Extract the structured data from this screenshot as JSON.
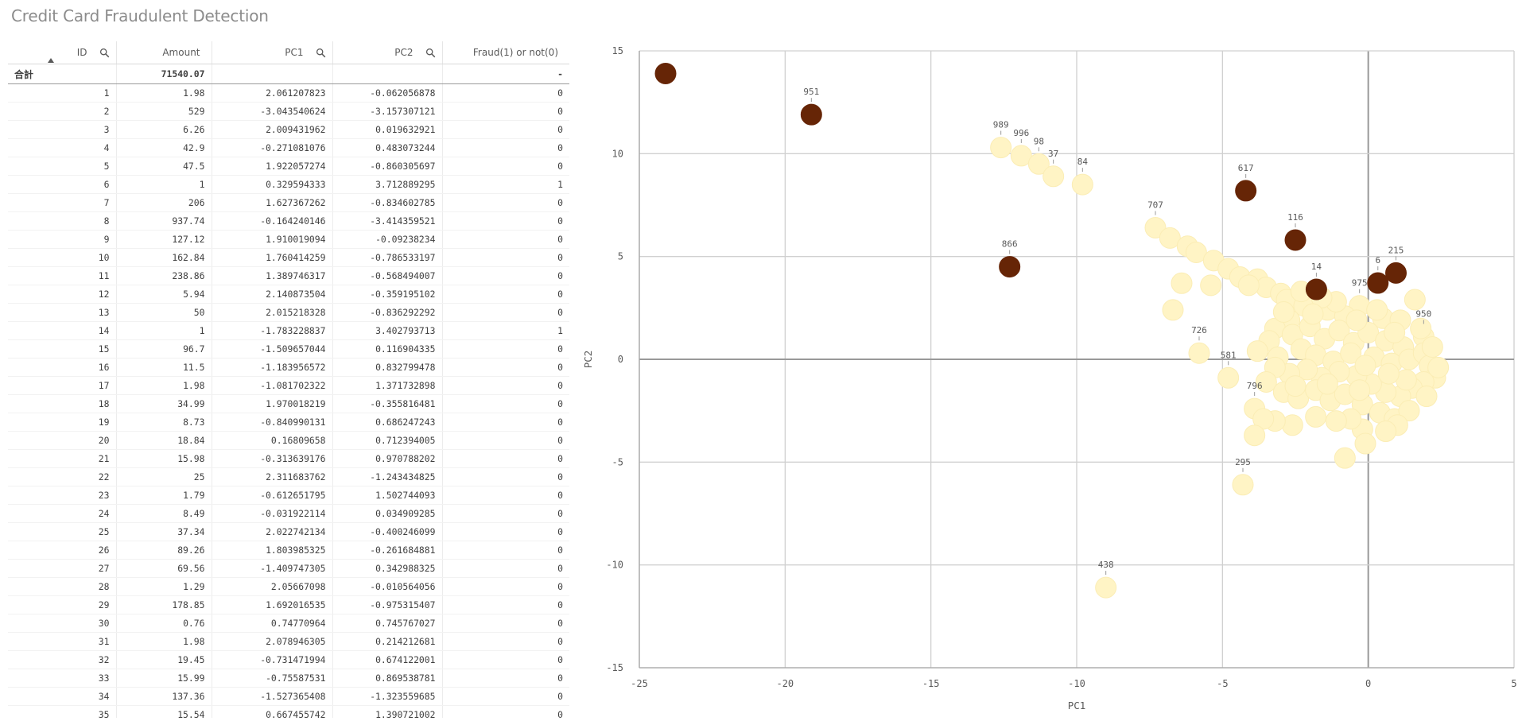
{
  "page": {
    "title": "Credit Card Fraudulent Detection"
  },
  "table": {
    "headers": [
      "ID",
      "Amount",
      "PC1",
      "PC2",
      "Fraud(1) or not(0)"
    ],
    "total_label": "合計",
    "total_amount": "71540.07",
    "total_pc1": "",
    "total_pc2": "",
    "total_fraud": "-",
    "rows": [
      [
        "1",
        "1.98",
        "2.061207823",
        "-0.062056878",
        "0"
      ],
      [
        "2",
        "529",
        "-3.043540624",
        "-3.157307121",
        "0"
      ],
      [
        "3",
        "6.26",
        "2.009431962",
        "0.019632921",
        "0"
      ],
      [
        "4",
        "42.9",
        "-0.271081076",
        "0.483073244",
        "0"
      ],
      [
        "5",
        "47.5",
        "1.922057274",
        "-0.860305697",
        "0"
      ],
      [
        "6",
        "1",
        "0.329594333",
        "3.712889295",
        "1"
      ],
      [
        "7",
        "206",
        "1.627367262",
        "-0.834602785",
        "0"
      ],
      [
        "8",
        "937.74",
        "-0.164240146",
        "-3.414359521",
        "0"
      ],
      [
        "9",
        "127.12",
        "1.910019094",
        "-0.09238234",
        "0"
      ],
      [
        "10",
        "162.84",
        "1.760414259",
        "-0.786533197",
        "0"
      ],
      [
        "11",
        "238.86",
        "1.389746317",
        "-0.568494007",
        "0"
      ],
      [
        "12",
        "5.94",
        "2.140873504",
        "-0.359195102",
        "0"
      ],
      [
        "13",
        "50",
        "2.015218328",
        "-0.836292292",
        "0"
      ],
      [
        "14",
        "1",
        "-1.783228837",
        "3.402793713",
        "1"
      ],
      [
        "15",
        "96.7",
        "-1.509657044",
        "0.116904335",
        "0"
      ],
      [
        "16",
        "11.5",
        "-1.183956572",
        "0.832799478",
        "0"
      ],
      [
        "17",
        "1.98",
        "-1.081702322",
        "1.371732898",
        "0"
      ],
      [
        "18",
        "34.99",
        "1.970018219",
        "-0.355816481",
        "0"
      ],
      [
        "19",
        "8.73",
        "-0.840990131",
        "0.686247243",
        "0"
      ],
      [
        "20",
        "18.84",
        "0.16809658",
        "0.712394005",
        "0"
      ],
      [
        "21",
        "15.98",
        "-0.313639176",
        "0.970788202",
        "0"
      ],
      [
        "22",
        "25",
        "2.311683762",
        "-1.243434825",
        "0"
      ],
      [
        "23",
        "1.79",
        "-0.612651795",
        "1.502744093",
        "0"
      ],
      [
        "24",
        "8.49",
        "-0.031922114",
        "0.034909285",
        "0"
      ],
      [
        "25",
        "37.34",
        "2.022742134",
        "-0.400246099",
        "0"
      ],
      [
        "26",
        "89.26",
        "1.803985325",
        "-0.261684881",
        "0"
      ],
      [
        "27",
        "69.56",
        "-1.409747305",
        "0.342988325",
        "0"
      ],
      [
        "28",
        "1.29",
        "2.05667098",
        "-0.010564056",
        "0"
      ],
      [
        "29",
        "178.85",
        "1.692016535",
        "-0.975315407",
        "0"
      ],
      [
        "30",
        "0.76",
        "0.74770964",
        "0.745767027",
        "0"
      ],
      [
        "31",
        "1.98",
        "2.078946305",
        "0.214212681",
        "0"
      ],
      [
        "32",
        "19.45",
        "-0.731471994",
        "0.674122001",
        "0"
      ],
      [
        "33",
        "15.99",
        "-0.75587531",
        "0.869538781",
        "0"
      ],
      [
        "34",
        "137.36",
        "-1.527365408",
        "-1.323559685",
        "0"
      ],
      [
        "35",
        "15.54",
        "0.667455742",
        "1.390721002",
        "0"
      ]
    ]
  },
  "colors": {
    "fraud": "#662506",
    "normal": "#fff4c5",
    "grid": "#d0d0d0",
    "axis": "#999999"
  },
  "icons": {
    "search": "search-icon",
    "sort": "sort-ascending-icon"
  },
  "chart_data": {
    "type": "scatter",
    "xlabel": "PC1",
    "ylabel": "PC2",
    "xlim": [
      -25,
      5
    ],
    "ylim": [
      -15,
      15
    ],
    "xticks": [
      -25,
      -20,
      -15,
      -10,
      -5,
      0,
      5
    ],
    "yticks": [
      -15,
      -10,
      -5,
      0,
      5,
      10,
      15
    ],
    "grid": true,
    "points": [
      {
        "label": "",
        "x": -24.1,
        "y": 13.9,
        "fraud": 1
      },
      {
        "label": "951",
        "x": -19.1,
        "y": 11.9,
        "fraud": 1
      },
      {
        "label": "866",
        "x": -12.3,
        "y": 4.5,
        "fraud": 1
      },
      {
        "label": "617",
        "x": -4.2,
        "y": 8.2,
        "fraud": 1
      },
      {
        "label": "116",
        "x": -2.5,
        "y": 5.8,
        "fraud": 1
      },
      {
        "label": "14",
        "x": -1.78,
        "y": 3.4,
        "fraud": 1
      },
      {
        "label": "6",
        "x": 0.33,
        "y": 3.71,
        "fraud": 1
      },
      {
        "label": "215",
        "x": 0.95,
        "y": 4.2,
        "fraud": 1
      },
      {
        "label": "989",
        "x": -12.6,
        "y": 10.3,
        "fraud": 0
      },
      {
        "label": "996",
        "x": -11.9,
        "y": 9.9,
        "fraud": 0
      },
      {
        "label": "98",
        "x": -11.3,
        "y": 9.5,
        "fraud": 0
      },
      {
        "label": "37",
        "x": -10.8,
        "y": 8.9,
        "fraud": 0
      },
      {
        "label": "84",
        "x": -9.8,
        "y": 8.5,
        "fraud": 0
      },
      {
        "label": "707",
        "x": -7.3,
        "y": 6.4,
        "fraud": 0
      },
      {
        "label": "726",
        "x": -5.8,
        "y": 0.3,
        "fraud": 0
      },
      {
        "label": "581",
        "x": -4.8,
        "y": -0.9,
        "fraud": 0
      },
      {
        "label": "796",
        "x": -3.9,
        "y": -2.4,
        "fraud": 0
      },
      {
        "label": "295",
        "x": -4.3,
        "y": -6.1,
        "fraud": 0
      },
      {
        "label": "438",
        "x": -9.0,
        "y": -11.1,
        "fraud": 0
      },
      {
        "label": "975",
        "x": -0.3,
        "y": 2.6,
        "fraud": 0
      },
      {
        "label": "950",
        "x": 1.9,
        "y": 1.1,
        "fraud": 0
      },
      {
        "label": "",
        "x": -6.8,
        "y": 5.9,
        "fraud": 0
      },
      {
        "label": "",
        "x": -6.2,
        "y": 5.5,
        "fraud": 0
      },
      {
        "label": "",
        "x": -5.9,
        "y": 5.2,
        "fraud": 0
      },
      {
        "label": "",
        "x": -5.3,
        "y": 4.8,
        "fraud": 0
      },
      {
        "label": "",
        "x": -4.8,
        "y": 4.4,
        "fraud": 0
      },
      {
        "label": "",
        "x": -4.4,
        "y": 4.0,
        "fraud": 0
      },
      {
        "label": "",
        "x": -3.8,
        "y": 3.9,
        "fraud": 0
      },
      {
        "label": "",
        "x": -3.5,
        "y": 3.5,
        "fraud": 0
      },
      {
        "label": "",
        "x": -3.0,
        "y": 3.2,
        "fraud": 0
      },
      {
        "label": "",
        "x": -6.4,
        "y": 3.7,
        "fraud": 0
      },
      {
        "label": "",
        "x": -5.4,
        "y": 3.6,
        "fraud": 0
      },
      {
        "label": "",
        "x": -6.7,
        "y": 2.4,
        "fraud": 0
      },
      {
        "label": "",
        "x": -2.8,
        "y": 2.9,
        "fraud": 0
      },
      {
        "label": "",
        "x": -2.2,
        "y": 2.6,
        "fraud": 0
      },
      {
        "label": "",
        "x": -1.4,
        "y": 2.4,
        "fraud": 0
      },
      {
        "label": "",
        "x": -0.8,
        "y": 2.1,
        "fraud": 0
      },
      {
        "label": "",
        "x": 0.5,
        "y": 2.0,
        "fraud": 0
      },
      {
        "label": "",
        "x": 1.1,
        "y": 1.9,
        "fraud": 0
      },
      {
        "label": "",
        "x": 1.6,
        "y": 2.9,
        "fraud": 0
      },
      {
        "label": "",
        "x": -2.7,
        "y": 1.9,
        "fraud": 0
      },
      {
        "label": "",
        "x": -3.2,
        "y": 1.5,
        "fraud": 0
      },
      {
        "label": "",
        "x": -3.4,
        "y": 0.9,
        "fraud": 0
      },
      {
        "label": "",
        "x": -3.8,
        "y": 0.4,
        "fraud": 0
      },
      {
        "label": "",
        "x": -3.1,
        "y": 0.1,
        "fraud": 0
      },
      {
        "label": "",
        "x": -2.6,
        "y": 1.2,
        "fraud": 0
      },
      {
        "label": "",
        "x": -2.0,
        "y": 1.6,
        "fraud": 0
      },
      {
        "label": "",
        "x": -1.5,
        "y": 1.0,
        "fraud": 0
      },
      {
        "label": "",
        "x": -1.0,
        "y": 1.4,
        "fraud": 0
      },
      {
        "label": "",
        "x": -0.5,
        "y": 0.8,
        "fraud": 0
      },
      {
        "label": "",
        "x": 0.0,
        "y": 1.3,
        "fraud": 0
      },
      {
        "label": "",
        "x": 0.6,
        "y": 0.9,
        "fraud": 0
      },
      {
        "label": "",
        "x": 1.2,
        "y": 0.6,
        "fraud": 0
      },
      {
        "label": "",
        "x": -2.3,
        "y": 0.5,
        "fraud": 0
      },
      {
        "label": "",
        "x": -1.8,
        "y": 0.2,
        "fraud": 0
      },
      {
        "label": "",
        "x": -1.2,
        "y": -0.1,
        "fraud": 0
      },
      {
        "label": "",
        "x": -0.6,
        "y": 0.3,
        "fraud": 0
      },
      {
        "label": "",
        "x": 0.2,
        "y": 0.1,
        "fraud": 0
      },
      {
        "label": "",
        "x": 0.8,
        "y": -0.2,
        "fraud": 0
      },
      {
        "label": "",
        "x": 1.4,
        "y": 0.0,
        "fraud": 0
      },
      {
        "label": "",
        "x": 1.9,
        "y": 0.3,
        "fraud": 0
      },
      {
        "label": "",
        "x": 2.1,
        "y": -0.3,
        "fraud": 0
      },
      {
        "label": "",
        "x": 2.3,
        "y": -0.9,
        "fraud": 0
      },
      {
        "label": "",
        "x": 1.9,
        "y": -1.1,
        "fraud": 0
      },
      {
        "label": "",
        "x": 1.5,
        "y": -1.4,
        "fraud": 0
      },
      {
        "label": "",
        "x": 1.1,
        "y": -1.8,
        "fraud": 0
      },
      {
        "label": "",
        "x": 0.6,
        "y": -1.6,
        "fraud": 0
      },
      {
        "label": "",
        "x": 0.1,
        "y": -1.2,
        "fraud": 0
      },
      {
        "label": "",
        "x": -0.4,
        "y": -0.8,
        "fraud": 0
      },
      {
        "label": "",
        "x": -1.0,
        "y": -0.6,
        "fraud": 0
      },
      {
        "label": "",
        "x": -1.6,
        "y": -0.9,
        "fraud": 0
      },
      {
        "label": "",
        "x": -2.1,
        "y": -0.5,
        "fraud": 0
      },
      {
        "label": "",
        "x": -2.7,
        "y": -0.7,
        "fraud": 0
      },
      {
        "label": "",
        "x": -3.2,
        "y": -0.4,
        "fraud": 0
      },
      {
        "label": "",
        "x": -3.5,
        "y": -1.1,
        "fraud": 0
      },
      {
        "label": "",
        "x": -2.9,
        "y": -1.6,
        "fraud": 0
      },
      {
        "label": "",
        "x": -2.4,
        "y": -1.9,
        "fraud": 0
      },
      {
        "label": "",
        "x": -1.8,
        "y": -1.5,
        "fraud": 0
      },
      {
        "label": "",
        "x": -1.3,
        "y": -2.0,
        "fraud": 0
      },
      {
        "label": "",
        "x": -0.8,
        "y": -1.7,
        "fraud": 0
      },
      {
        "label": "",
        "x": -0.2,
        "y": -2.2,
        "fraud": 0
      },
      {
        "label": "",
        "x": 0.4,
        "y": -2.6,
        "fraud": 0
      },
      {
        "label": "",
        "x": 0.9,
        "y": -2.9,
        "fraud": 0
      },
      {
        "label": "",
        "x": 1.4,
        "y": -2.5,
        "fraud": 0
      },
      {
        "label": "",
        "x": 1.0,
        "y": -3.2,
        "fraud": 0
      },
      {
        "label": "",
        "x": 0.6,
        "y": -3.5,
        "fraud": 0
      },
      {
        "label": "",
        "x": -0.2,
        "y": -3.4,
        "fraud": 0
      },
      {
        "label": "",
        "x": -0.8,
        "y": -4.8,
        "fraud": 0
      },
      {
        "label": "",
        "x": -0.6,
        "y": -2.9,
        "fraud": 0
      },
      {
        "label": "",
        "x": -1.1,
        "y": -3.0,
        "fraud": 0
      },
      {
        "label": "",
        "x": -1.8,
        "y": -2.8,
        "fraud": 0
      },
      {
        "label": "",
        "x": -2.6,
        "y": -3.2,
        "fraud": 0
      },
      {
        "label": "",
        "x": -3.2,
        "y": -3.0,
        "fraud": 0
      },
      {
        "label": "",
        "x": -3.6,
        "y": -2.9,
        "fraud": 0
      },
      {
        "label": "",
        "x": -3.9,
        "y": -3.7,
        "fraud": 0
      },
      {
        "label": "",
        "x": -0.1,
        "y": -4.1,
        "fraud": 0
      },
      {
        "label": "",
        "x": -0.4,
        "y": 1.9,
        "fraud": 0
      },
      {
        "label": "",
        "x": -1.1,
        "y": 2.8,
        "fraud": 0
      },
      {
        "label": "",
        "x": -1.6,
        "y": 3.0,
        "fraud": 0
      },
      {
        "label": "",
        "x": 0.3,
        "y": 2.4,
        "fraud": 0
      },
      {
        "label": "",
        "x": 0.9,
        "y": 1.3,
        "fraud": 0
      },
      {
        "label": "",
        "x": 1.8,
        "y": 1.5,
        "fraud": 0
      },
      {
        "label": "",
        "x": 2.2,
        "y": 0.6,
        "fraud": 0
      },
      {
        "label": "",
        "x": 2.4,
        "y": -0.4,
        "fraud": 0
      },
      {
        "label": "",
        "x": 2.0,
        "y": -1.8,
        "fraud": 0
      },
      {
        "label": "",
        "x": 1.3,
        "y": -1.0,
        "fraud": 0
      },
      {
        "label": "",
        "x": 0.7,
        "y": -0.7,
        "fraud": 0
      },
      {
        "label": "",
        "x": -0.1,
        "y": -0.3,
        "fraud": 0
      },
      {
        "label": "",
        "x": -2.9,
        "y": 2.3,
        "fraud": 0
      },
      {
        "label": "",
        "x": -2.3,
        "y": 3.3,
        "fraud": 0
      },
      {
        "label": "",
        "x": -1.9,
        "y": 2.2,
        "fraud": 0
      },
      {
        "label": "",
        "x": -4.1,
        "y": 3.6,
        "fraud": 0
      },
      {
        "label": "",
        "x": -2.5,
        "y": -1.3,
        "fraud": 0
      },
      {
        "label": "",
        "x": -1.4,
        "y": -1.2,
        "fraud": 0
      },
      {
        "label": "",
        "x": -0.3,
        "y": -1.5,
        "fraud": 0
      }
    ]
  }
}
